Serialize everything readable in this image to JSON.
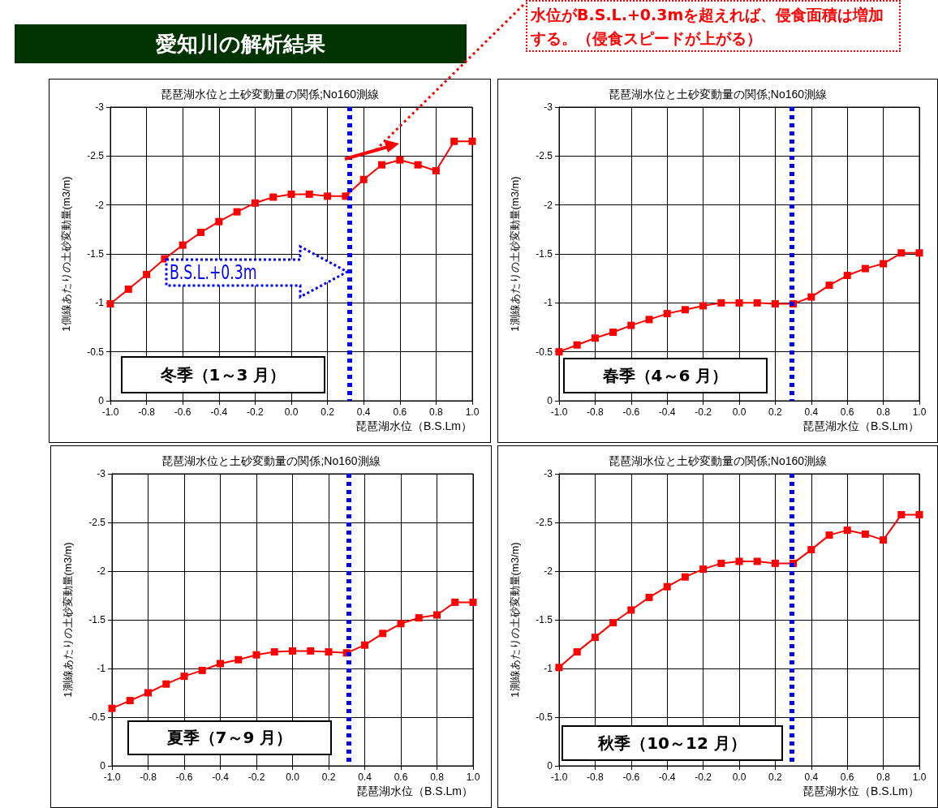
{
  "chart_data": [
    {
      "type": "line",
      "title": "琵琶湖水位と土砂変動量の関係;No160測線",
      "xlabel": "琵琶湖水位（B.S.Lm）",
      "ylabel": "1側線あたりの土砂変動量(m3/m)",
      "annotations": [
        "冬季（1～3 月）",
        "B.S.L.+0.3m",
        "愛知川の解析結果",
        "水位がB.S.L.+0.3mを超えれば、侵食面積は増加する。（侵食スピードが上がる）"
      ],
      "x": [
        -1.0,
        -0.9,
        -0.8,
        -0.7,
        -0.6,
        -0.5,
        -0.4,
        -0.3,
        -0.2,
        -0.1,
        0.0,
        0.1,
        0.2,
        0.3,
        0.4,
        0.5,
        0.6,
        0.7,
        0.8,
        0.9,
        1.0
      ],
      "series": [
        {
          "color": "#ff0000",
          "values": [
            -0.99,
            -1.14,
            -1.29,
            -1.45,
            -1.59,
            -1.72,
            -1.83,
            -1.93,
            -2.02,
            -2.08,
            -2.11,
            -2.11,
            -2.09,
            -2.09,
            -2.26,
            -2.41,
            -2.46,
            -2.41,
            -2.35,
            -2.65,
            -2.65
          ]
        }
      ],
      "marker": "square",
      "line_style": "solid",
      "grid": true,
      "xlim": [
        -1,
        1
      ],
      "xticks": [
        {
          "value": -1,
          "label": "-1.0"
        },
        -0.8,
        -0.6,
        -0.4,
        -0.2,
        {
          "value": 0,
          "label": "0.0"
        },
        0.2,
        0.4,
        0.6,
        0.8,
        {
          "value": 1,
          "label": "1.0"
        }
      ],
      "ylim": [
        0,
        -3
      ],
      "yticks": [
        0,
        -0.5,
        -1,
        -1.5,
        -2,
        -2.5,
        -3
      ],
      "ref_lines": [
        {
          "axis": "x",
          "value": 0.32,
          "color": "#0000ff",
          "line_style": "dotted"
        }
      ]
    },
    {
      "type": "line",
      "title": "琵琶湖水位と土砂変動量の関係;No160測線",
      "xlabel": "琵琶湖水位（B.S.Lm）",
      "ylabel": "1測線あたりの土砂変動量(m3/m)",
      "annotations": [
        "春季（4～6 月）"
      ],
      "x": [
        -1.0,
        -0.9,
        -0.8,
        -0.7,
        -0.6,
        -0.5,
        -0.4,
        -0.3,
        -0.2,
        -0.1,
        0.0,
        0.1,
        0.2,
        0.3,
        0.4,
        0.5,
        0.6,
        0.7,
        0.8,
        0.9,
        1.0
      ],
      "series": [
        {
          "color": "#ff0000",
          "values": [
            -0.5,
            -0.57,
            -0.64,
            -0.7,
            -0.77,
            -0.83,
            -0.89,
            -0.93,
            -0.97,
            -1.0,
            -1.0,
            -1.0,
            -0.99,
            -0.99,
            -1.06,
            -1.18,
            -1.28,
            -1.35,
            -1.4,
            -1.51,
            -1.51
          ]
        }
      ],
      "marker": "square",
      "line_style": "solid",
      "grid": true,
      "xlim": [
        -1,
        1
      ],
      "xticks": [
        {
          "value": -1,
          "label": "-1.0"
        },
        -0.8,
        -0.6,
        -0.4,
        -0.2,
        {
          "value": 0,
          "label": "0.0"
        },
        0.2,
        0.4,
        0.6,
        0.8,
        {
          "value": 1,
          "label": "1.0"
        }
      ],
      "ylim": [
        0,
        -3
      ],
      "yticks": [
        0,
        -0.5,
        -1,
        -1.5,
        -2,
        -2.5,
        -3
      ],
      "ref_lines": [
        {
          "axis": "x",
          "value": 0.29,
          "color": "#0000ff",
          "line_style": "dotted"
        }
      ]
    },
    {
      "type": "line",
      "title": "琵琶湖水位と土砂変動量の関係;No160測線",
      "xlabel": "琵琶湖水位（B.S.Lm）",
      "ylabel": "1測線あたりの土砂変動量(m3/m)",
      "annotations": [
        "夏季（7～9 月）"
      ],
      "x": [
        -1.0,
        -0.9,
        -0.8,
        -0.7,
        -0.6,
        -0.5,
        -0.4,
        -0.3,
        -0.2,
        -0.1,
        0.0,
        0.1,
        0.2,
        0.3,
        0.4,
        0.5,
        0.6,
        0.7,
        0.8,
        0.9,
        1.0
      ],
      "series": [
        {
          "color": "#ff0000",
          "values": [
            -0.59,
            -0.67,
            -0.75,
            -0.84,
            -0.92,
            -0.98,
            -1.05,
            -1.09,
            -1.14,
            -1.17,
            -1.18,
            -1.18,
            -1.17,
            -1.16,
            -1.24,
            -1.36,
            -1.46,
            -1.52,
            -1.55,
            -1.68,
            -1.68
          ]
        }
      ],
      "marker": "square",
      "line_style": "solid",
      "grid": true,
      "xlim": [
        -1,
        1
      ],
      "xticks": [
        {
          "value": -1,
          "label": "-1.0"
        },
        -0.8,
        -0.6,
        -0.4,
        -0.2,
        {
          "value": 0,
          "label": "0.0"
        },
        0.2,
        0.4,
        0.6,
        0.8,
        {
          "value": 1,
          "label": "1.0"
        }
      ],
      "ylim": [
        0,
        -3
      ],
      "yticks": [
        0,
        -0.5,
        -1,
        -1.5,
        -2,
        -2.5,
        -3
      ],
      "ref_lines": [
        {
          "axis": "x",
          "value": 0.31,
          "color": "#0000ff",
          "line_style": "dotted"
        }
      ]
    },
    {
      "type": "line",
      "title": "琵琶湖水位と土砂変動量の関係;No160測線",
      "xlabel": "琵琶湖水位（B.S.Lm）",
      "ylabel": "1測線あたりの土砂変動量(m3/m)",
      "annotations": [
        "秋季（10～12 月）"
      ],
      "x": [
        -1.0,
        -0.9,
        -0.8,
        -0.7,
        -0.6,
        -0.5,
        -0.4,
        -0.3,
        -0.2,
        -0.1,
        0.0,
        0.1,
        0.2,
        0.3,
        0.4,
        0.5,
        0.6,
        0.7,
        0.8,
        0.9,
        1.0
      ],
      "series": [
        {
          "color": "#ff0000",
          "values": [
            -1.01,
            -1.17,
            -1.32,
            -1.47,
            -1.6,
            -1.73,
            -1.84,
            -1.94,
            -2.02,
            -2.08,
            -2.1,
            -2.1,
            -2.08,
            -2.08,
            -2.22,
            -2.37,
            -2.42,
            -2.38,
            -2.32,
            -2.58,
            -2.58
          ]
        }
      ],
      "marker": "square",
      "line_style": "solid",
      "grid": true,
      "xlim": [
        -1,
        1
      ],
      "xticks": [
        {
          "value": -1,
          "label": "-1.0"
        },
        -0.8,
        -0.6,
        -0.4,
        -0.2,
        {
          "value": 0,
          "label": "0.0"
        },
        0.2,
        0.4,
        0.6,
        0.8,
        {
          "value": 1,
          "label": "1.0"
        }
      ],
      "ylim": [
        0,
        -3
      ],
      "yticks": [
        0,
        -0.5,
        -1,
        -1.5,
        -2,
        -2.5,
        -3
      ],
      "ref_lines": [
        {
          "axis": "x",
          "value": 0.29,
          "color": "#0000ff",
          "line_style": "dotted"
        }
      ]
    }
  ]
}
